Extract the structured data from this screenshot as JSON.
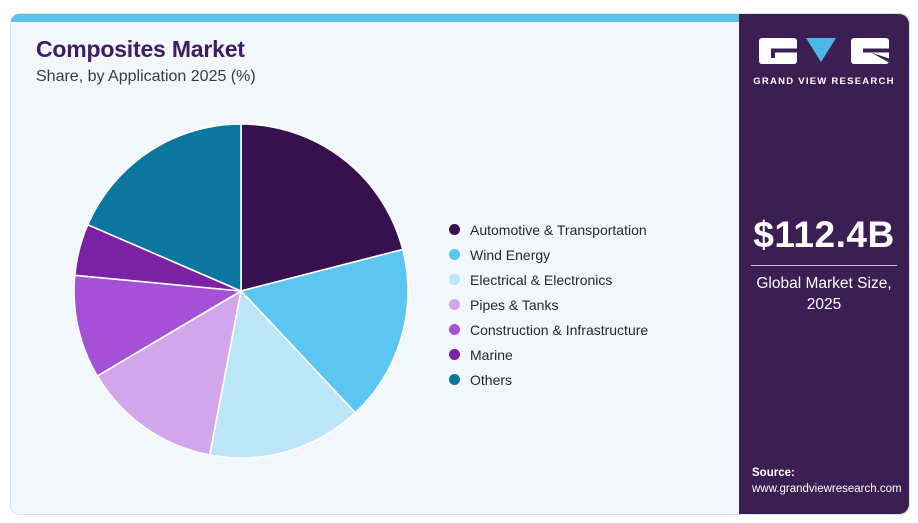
{
  "header": {
    "title": "Composites Market",
    "subtitle": "Share, by Application 2025 (%)"
  },
  "chart_data": {
    "type": "pie",
    "title": "Composites Market Share, by Application 2025 (%)",
    "categories": [
      "Automotive & Transportation",
      "Wind Energy",
      "Electrical & Electronics",
      "Pipes & Tanks",
      "Construction & Infrastructure",
      "Marine",
      "Others"
    ],
    "values": [
      21,
      17,
      15,
      13.5,
      10,
      5,
      18.5
    ],
    "unit": "%",
    "colors": [
      "#371050",
      "#5BC6F2",
      "#BCE6F8",
      "#D2A6EC",
      "#A551D7",
      "#7B21A3",
      "#0B76A0"
    ],
    "start_angle_deg": 0,
    "direction": "clockwise",
    "legend_position": "right",
    "data_labels_shown": false
  },
  "sidebar": {
    "logo": {
      "brand": "GRAND VIEW RESEARCH",
      "triangle_color": "#4AB9E8"
    },
    "market_size": {
      "value": "$112.4B",
      "label_line1": "Global Market Size,",
      "label_line2": "2025"
    },
    "source": {
      "label": "Source:",
      "url": "www.grandviewresearch.com"
    }
  },
  "colors": {
    "accent_stripe": "#5BC2EC",
    "sidebar_bg": "#3B1F53",
    "card_bg": "#F1F7FB",
    "title_text": "#3F1D63",
    "slice_gap": "#FFFFFF"
  }
}
